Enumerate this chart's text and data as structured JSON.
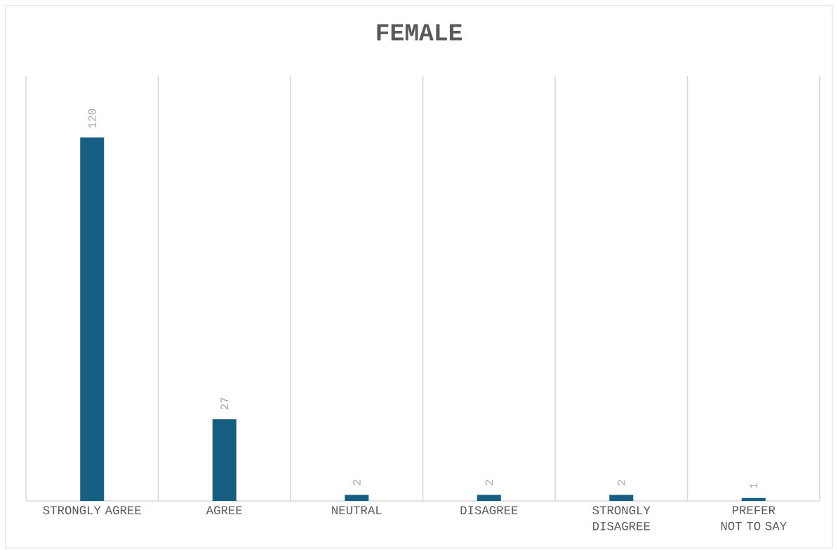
{
  "chart_data": {
    "type": "bar",
    "title": "FEMALE",
    "categories": [
      "STRONGLY AGREE",
      "AGREE",
      "NEUTRAL",
      "DISAGREE",
      "STRONGLY DISAGREE",
      "PREFER NOT TO SAY"
    ],
    "values": [
      120,
      27,
      2,
      2,
      2,
      1
    ],
    "color": "#175f82",
    "data_labels": true,
    "grid": "x"
  }
}
